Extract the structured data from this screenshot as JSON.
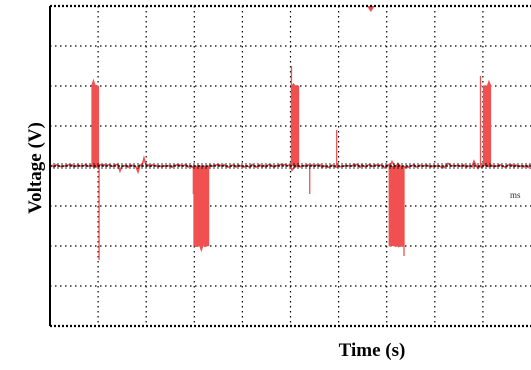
{
  "chart_data": {
    "type": "line",
    "title": "",
    "xlabel": "Time (s)",
    "ylabel": "Voltage (V)",
    "annotations": [
      "ms"
    ],
    "grid": true,
    "xlim": [
      0,
      10
    ],
    "ylim": [
      -4,
      4
    ],
    "series": [
      {
        "color": "#f05050",
        "x": [
          0.0,
          0.0,
          0.86,
          0.86,
          1.02,
          1.02,
          2.98,
          2.98,
          3.31,
          3.31,
          5.02,
          5.02,
          5.18,
          5.18,
          7.04,
          7.04,
          7.36,
          7.36,
          9.0,
          9.0,
          9.17,
          9.17,
          10.0
        ],
        "values": [
          2.0,
          0.0,
          0.0,
          2.0,
          2.0,
          0.0,
          0.0,
          -2.0,
          -2.0,
          0.0,
          0.0,
          2.0,
          2.0,
          0.0,
          0.0,
          -2.0,
          -2.0,
          0.0,
          0.0,
          2.0,
          2.0,
          0.0,
          0.0
        ],
        "note_fill": "band between 0 and the level"
      }
    ]
  }
}
